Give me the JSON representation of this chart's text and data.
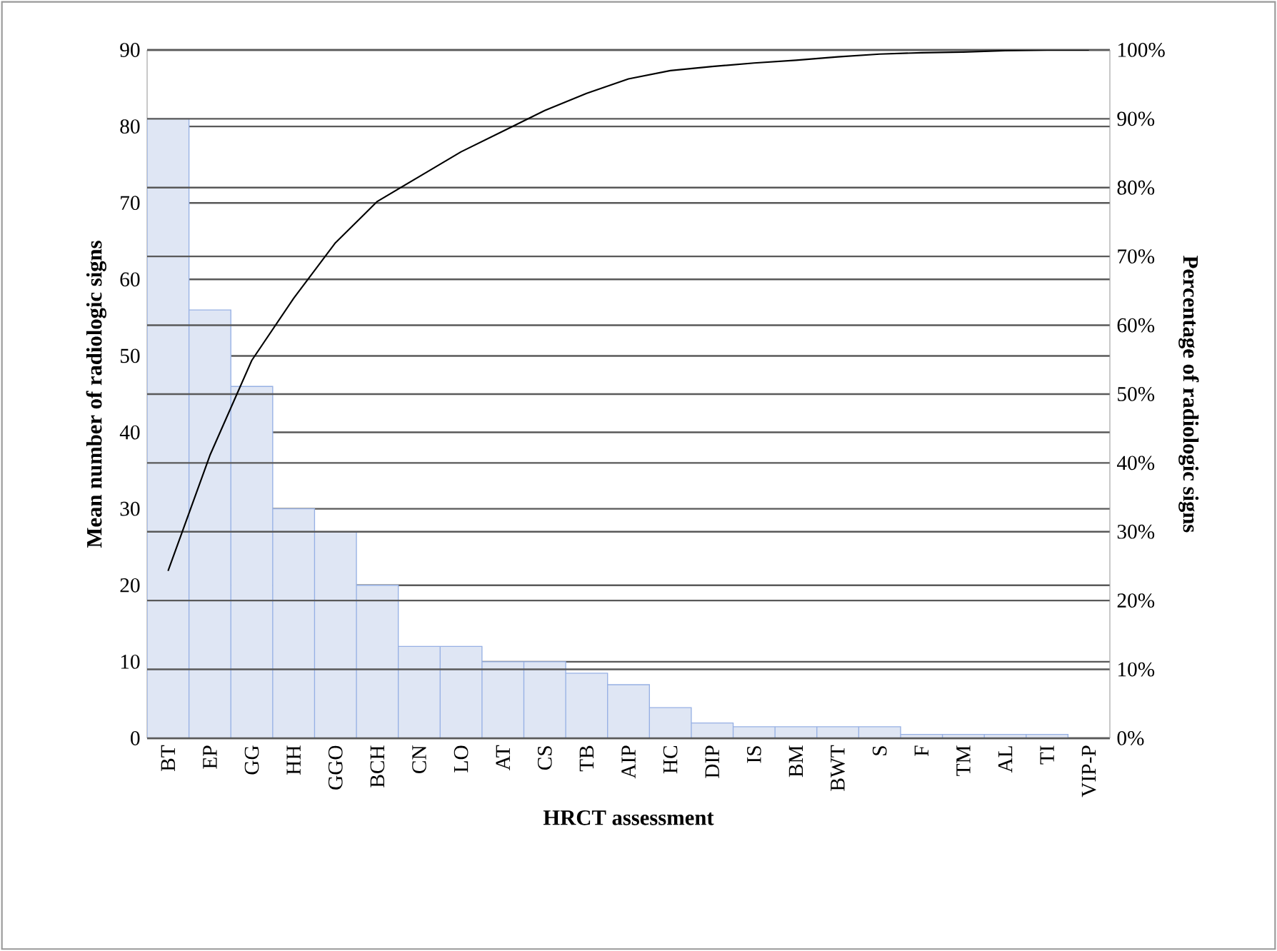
{
  "chart_data": {
    "type": "bar",
    "xlabel": "HRCT assessment",
    "ylabel": "Mean number of radiologic signs",
    "y2label": "Percentage of radiologic signs",
    "categories": [
      "BT",
      "EP",
      "GG",
      "HH",
      "GGO",
      "BCH",
      "CN",
      "LO",
      "AT",
      "CS",
      "TB",
      "AIP",
      "HC",
      "DIP",
      "IS",
      "BM",
      "BWT",
      "S",
      "F",
      "TM",
      "AL",
      "TI",
      "VIP-P"
    ],
    "series": [
      {
        "color": "#dfe6f4",
        "values": [
          81,
          56,
          46,
          30,
          27,
          20,
          12,
          12,
          10,
          10,
          8.5,
          7,
          4,
          2,
          1.5,
          1.5,
          1.5,
          1.5,
          0.5,
          0.5,
          0.5,
          0.5,
          0
        ]
      },
      {
        "type": "line",
        "axis": "y2",
        "color": "#000000",
        "values": [
          24.3,
          41.1,
          54.9,
          63.9,
          72.0,
          78.0,
          81.6,
          85.2,
          88.2,
          91.2,
          93.7,
          95.8,
          97.0,
          97.6,
          98.1,
          98.5,
          99.0,
          99.4,
          99.6,
          99.7,
          99.9,
          100,
          100
        ]
      }
    ],
    "ylim": [
      0,
      90
    ],
    "yticks": [
      0,
      10,
      20,
      30,
      40,
      50,
      60,
      70,
      80,
      90
    ],
    "y2lim": [
      0,
      100
    ],
    "y2ticks": [
      {
        "value": 0,
        "label": "0%"
      },
      {
        "value": 10,
        "label": "10%"
      },
      {
        "value": 20,
        "label": "20%"
      },
      {
        "value": 30,
        "label": "30%"
      },
      {
        "value": 40,
        "label": "40%"
      },
      {
        "value": 50,
        "label": "50%"
      },
      {
        "value": 60,
        "label": "60%"
      },
      {
        "value": 70,
        "label": "70%"
      },
      {
        "value": 80,
        "label": "80%"
      },
      {
        "value": 90,
        "label": "90%"
      },
      {
        "value": 100,
        "label": "100%"
      }
    ],
    "grid": "y",
    "line_style": "solid"
  }
}
